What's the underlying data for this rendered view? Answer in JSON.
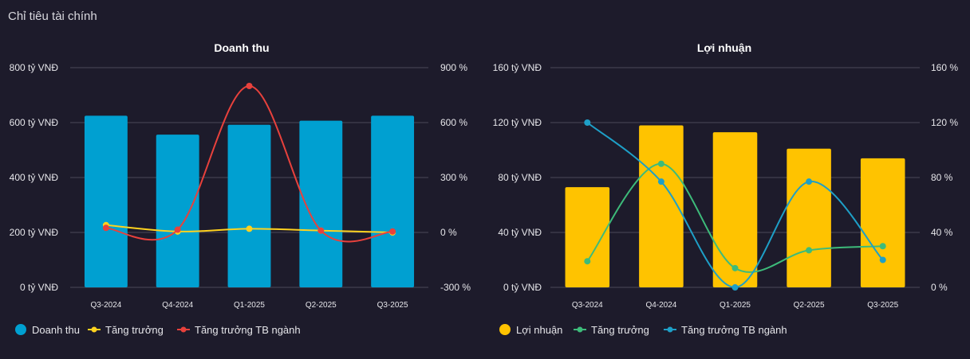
{
  "panel": {
    "title": "Chỉ tiêu tài chính"
  },
  "chart_data": [
    {
      "type": "bar",
      "title": "Doanh thu",
      "categories": [
        "Q3-2024",
        "Q4-2024",
        "Q1-2025",
        "Q2-2025",
        "Q3-2025"
      ],
      "left_axis": {
        "ticks": [
          0,
          200,
          400,
          600,
          800
        ],
        "labels": [
          "0 tỷ VNĐ",
          "200 tỷ VNĐ",
          "400 tỷ VNĐ",
          "600 tỷ VNĐ",
          "800 tỷ VNĐ"
        ],
        "ylim": [
          0,
          800
        ]
      },
      "right_axis": {
        "ticks": [
          -300,
          0,
          300,
          600,
          900
        ],
        "labels": [
          "-300 %",
          "0 %",
          "300 %",
          "600 %",
          "900 %"
        ],
        "ylim": [
          -300,
          900
        ]
      },
      "series": [
        {
          "name": "Doanh thu",
          "kind": "bar",
          "axis": "left",
          "color": "#00a0d1",
          "values": [
            625,
            556,
            592,
            607,
            625
          ]
        },
        {
          "name": "Tăng trưởng",
          "kind": "line",
          "axis": "right",
          "color": "#ffd21f",
          "values": [
            40,
            5,
            20,
            10,
            0
          ]
        },
        {
          "name": "Tăng trưởng TB ngành",
          "kind": "line",
          "axis": "right",
          "color": "#e8413c",
          "values": [
            25,
            15,
            800,
            10,
            5
          ]
        }
      ],
      "legend": "bottom-left"
    },
    {
      "type": "bar",
      "title": "Lợi nhuận",
      "categories": [
        "Q3-2024",
        "Q4-2024",
        "Q1-2025",
        "Q2-2025",
        "Q3-2025"
      ],
      "left_axis": {
        "ticks": [
          0,
          40,
          80,
          120,
          160
        ],
        "labels": [
          "0 tỷ VNĐ",
          "40 tỷ VNĐ",
          "80 tỷ VNĐ",
          "120 tỷ VNĐ",
          "160 tỷ VNĐ"
        ],
        "ylim": [
          0,
          160
        ]
      },
      "right_axis": {
        "ticks": [
          0,
          40,
          80,
          120,
          160
        ],
        "labels": [
          "0 %",
          "40 %",
          "80 %",
          "120 %",
          "160 %"
        ],
        "ylim": [
          0,
          160
        ]
      },
      "series": [
        {
          "name": "Lợi nhuận",
          "kind": "bar",
          "axis": "left",
          "color": "#ffc300",
          "values": [
            73,
            118,
            113,
            101,
            94
          ]
        },
        {
          "name": "Tăng trưởng",
          "kind": "line",
          "axis": "right",
          "color": "#3dbb7a",
          "values": [
            19,
            90,
            14,
            27,
            30
          ]
        },
        {
          "name": "Tăng trưởng TB ngành",
          "kind": "line",
          "axis": "right",
          "color": "#1e9fc7",
          "values": [
            120,
            77,
            0,
            77,
            20
          ]
        }
      ],
      "legend": "bottom-left"
    }
  ]
}
